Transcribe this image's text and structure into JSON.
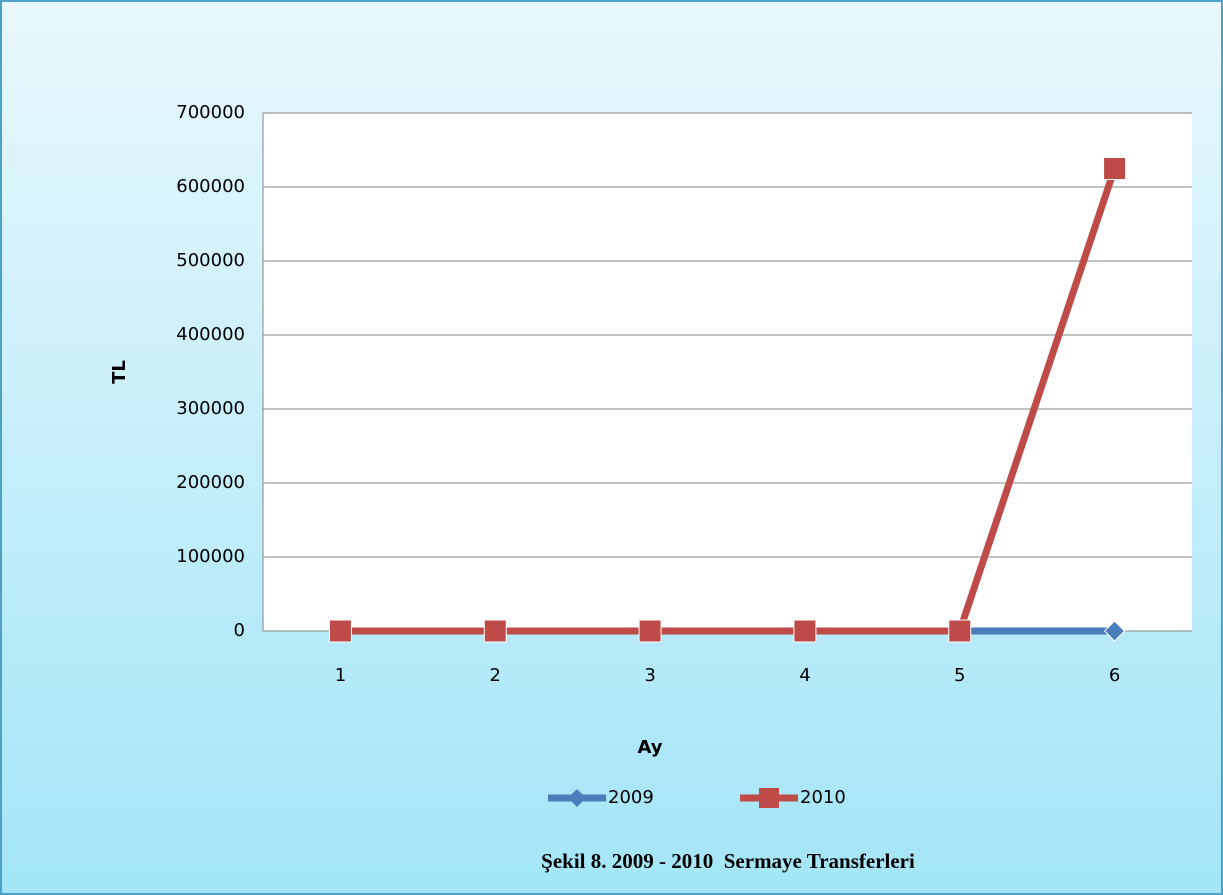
{
  "chart_data": {
    "type": "line",
    "x_label": "Ay",
    "y_label": "TL",
    "caption": "Şekil 8. 2009 - 2010  Sermaye Transferleri",
    "categories": [
      "1",
      "2",
      "3",
      "4",
      "5",
      "6"
    ],
    "series": [
      {
        "name": "2009",
        "color": "#4a7ebb",
        "marker": "diamond",
        "values": [
          0,
          0,
          0,
          0,
          0,
          0
        ]
      },
      {
        "name": "2010",
        "color": "#be4b48",
        "marker": "square",
        "values": [
          0,
          0,
          0,
          0,
          0,
          625000
        ]
      }
    ],
    "ylim": [
      0,
      700000
    ],
    "yticks": [
      0,
      100000,
      200000,
      300000,
      400000,
      500000,
      600000,
      700000
    ],
    "grid": true,
    "legend": "bottom"
  }
}
